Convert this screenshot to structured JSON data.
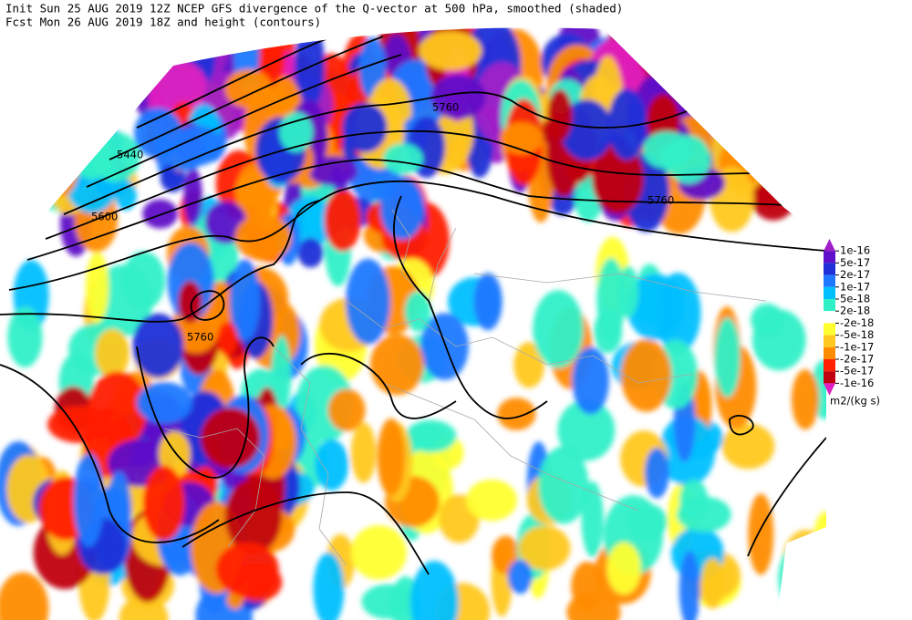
{
  "header": {
    "line1": "Init  Sun 25 AUG 2019 12Z  NCEP GFS divergence of the Q-vector at 500 hPa, smoothed (shaded)",
    "line2": "Fcst Mon 26 AUG 2019 18Z  and height (contours)"
  },
  "contour_labels": [
    "5440",
    "5600",
    "5760",
    "5760",
    "5760"
  ],
  "colorbar": {
    "labels": [
      "1e-16",
      "5e-17",
      "2e-17",
      "1e-17",
      "5e-18",
      "2e-18",
      "-2e-18",
      "-5e-18",
      "-1e-17",
      "-2e-17",
      "-5e-17",
      "-1e-16"
    ],
    "colors": [
      "#a020c8",
      "#6010c8",
      "#2030d8",
      "#1e78ff",
      "#00c0ff",
      "#30f0c8",
      "#ffffff",
      "#ffff30",
      "#ffc820",
      "#ff8c00",
      "#ff2000",
      "#c00010",
      "#e020c0"
    ],
    "unit": "m2/(kg s)"
  }
}
